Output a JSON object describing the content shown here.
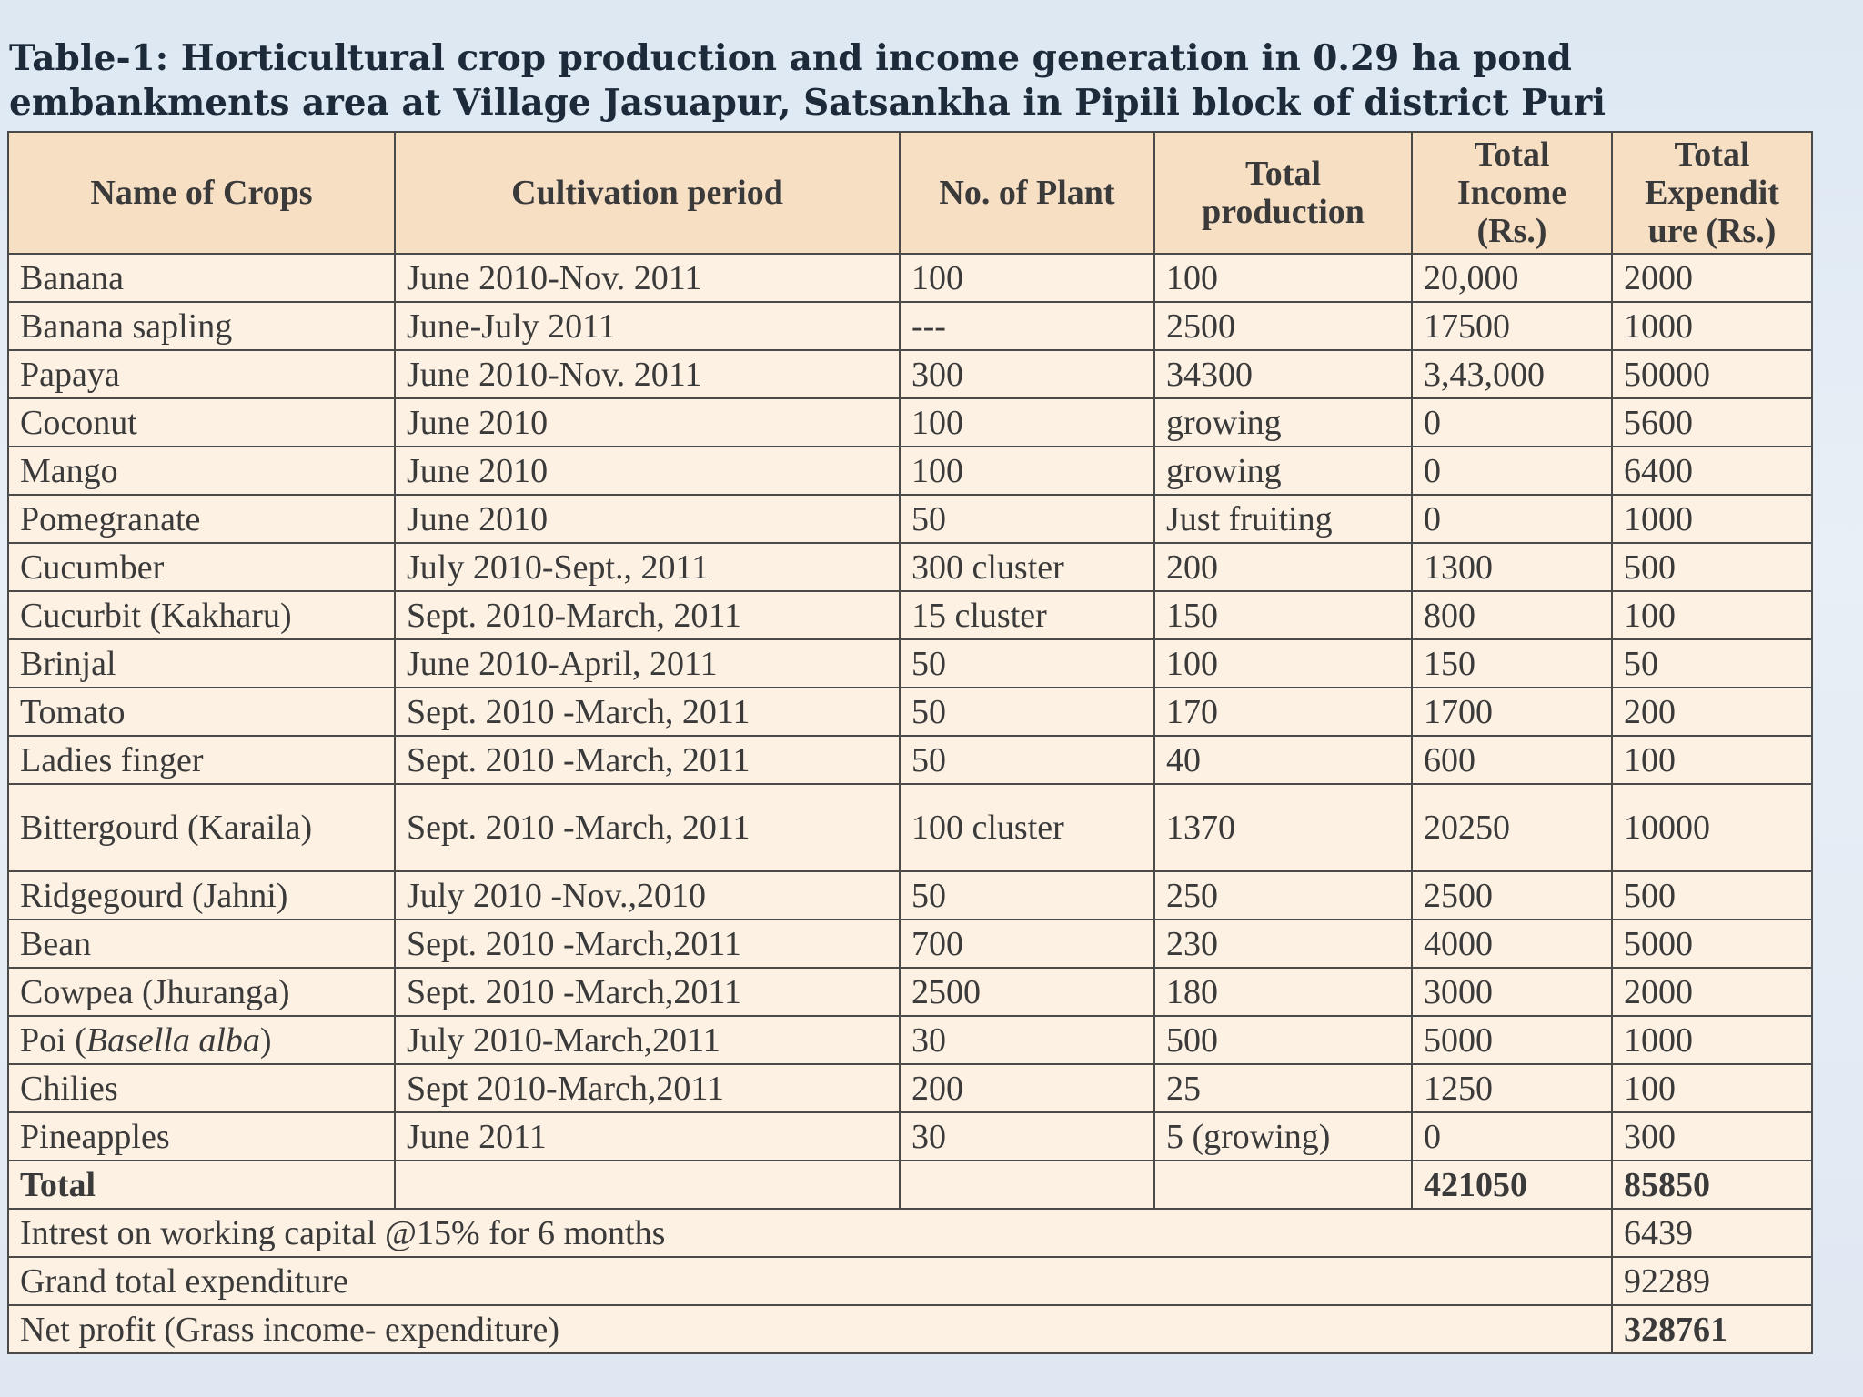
{
  "caption": "Table-1: Horticultural crop production and income generation in 0.29 ha pond embankments area at Village Jasuapur,  Satsankha in Pipili block of district Puri",
  "table": {
    "headers": [
      "Name of Crops",
      "Cultivation period",
      "No. of Plant",
      "Total production",
      "Total Income (Rs.)",
      "Total Expendit ure (Rs.)"
    ],
    "rows": [
      [
        "Banana",
        "June 2010-Nov. 2011",
        "100",
        "100",
        "20,000",
        "2000"
      ],
      [
        "Banana sapling",
        "June-July 2011",
        "---",
        "2500",
        "17500",
        "1000"
      ],
      [
        "Papaya",
        "June 2010-Nov. 2011",
        "300",
        "34300",
        "3,43,000",
        "50000"
      ],
      [
        "Coconut",
        "June 2010",
        "100",
        "growing",
        "0",
        "5600"
      ],
      [
        "Mango",
        "June 2010",
        "100",
        "growing",
        "0",
        "6400"
      ],
      [
        "Pomegranate",
        "June 2010",
        "50",
        "Just fruiting",
        "0",
        "1000"
      ],
      [
        "Cucumber",
        "July  2010-Sept., 2011",
        "300 cluster",
        "200",
        "1300",
        "500"
      ],
      [
        "Cucurbit (Kakharu)",
        "Sept. 2010-March, 2011",
        "15 cluster",
        "150",
        "800",
        "100"
      ],
      [
        "Brinjal",
        "June 2010-April, 2011",
        "50",
        "100",
        "150",
        "50"
      ],
      [
        "Tomato",
        "Sept. 2010 -March, 2011",
        "50",
        "170",
        "1700",
        "200"
      ],
      [
        "Ladies finger",
        "Sept. 2010 -March, 2011",
        "50",
        "40",
        "600",
        "100"
      ],
      [
        "Bittergourd (Karaila)",
        "Sept. 2010 -March, 2011",
        "100 cluster",
        "1370",
        "20250",
        "10000"
      ],
      [
        "Ridgegourd (Jahni)",
        "July  2010 -Nov.,2010",
        "50",
        "250",
        "2500",
        "500"
      ],
      [
        "Bean",
        "Sept. 2010 -March,2011",
        "700",
        "230",
        "4000",
        "5000"
      ],
      [
        "Cowpea (Jhuranga)",
        "Sept. 2010 -March,2011",
        "2500",
        "180",
        "3000",
        "2000"
      ],
      [
        "Poi (Basella alba)",
        "July  2010-March,2011",
        "30",
        "500",
        "5000",
        "1000"
      ],
      [
        "Chilies",
        "Sept  2010-March,2011",
        "200",
        "25",
        "1250",
        "100"
      ],
      [
        "Pineapples",
        "June  2011",
        "30",
        "5 (growing)",
        "0",
        "300"
      ]
    ],
    "total": {
      "label": "Total",
      "income": "421050",
      "expenditure": "85850"
    },
    "summary": [
      {
        "label": "Intrest on working capital @15% for 6 months",
        "value": "6439"
      },
      {
        "label": "Grand total expenditure",
        "value": "92289"
      },
      {
        "label": "Net profit (Grass income- expenditure)",
        "value": "328761"
      }
    ]
  }
}
